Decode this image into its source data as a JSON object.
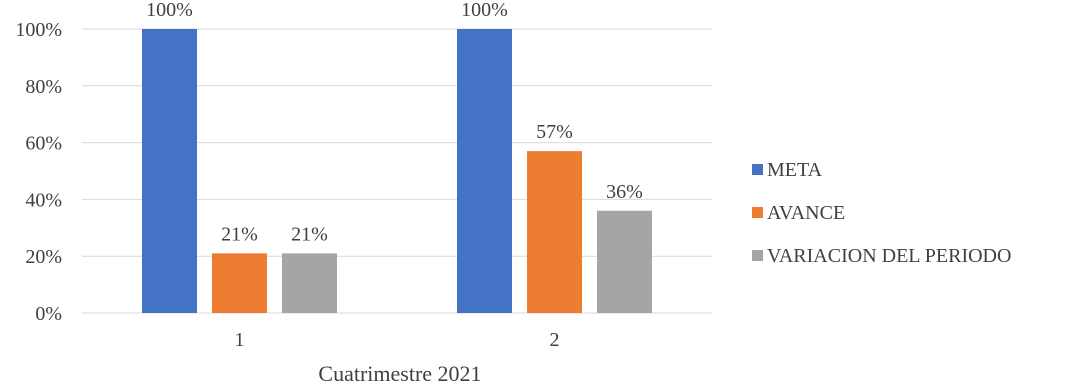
{
  "chart_data": {
    "type": "bar",
    "categories": [
      "1",
      "2"
    ],
    "series": [
      {
        "name": "META",
        "values": [
          100,
          100
        ],
        "labels": [
          "100%",
          "100%"
        ],
        "color": "#4472C4"
      },
      {
        "name": "AVANCE",
        "values": [
          21,
          57
        ],
        "labels": [
          "21%",
          "57%"
        ],
        "color": "#ED7D31"
      },
      {
        "name": "VARIACION DEL PERIODO",
        "values": [
          21,
          36
        ],
        "labels": [
          "21%",
          "36%"
        ],
        "color": "#A5A5A5"
      }
    ],
    "yticks": [
      0,
      20,
      40,
      60,
      80,
      100
    ],
    "ytick_labels": [
      "0%",
      "20%",
      "40%",
      "60%",
      "80%",
      "100%"
    ],
    "ylim": [
      0,
      100
    ],
    "xlabel": "Cuatrimestre 2021",
    "ylabel": "",
    "title": "",
    "grid": true,
    "legend_position": "right"
  }
}
